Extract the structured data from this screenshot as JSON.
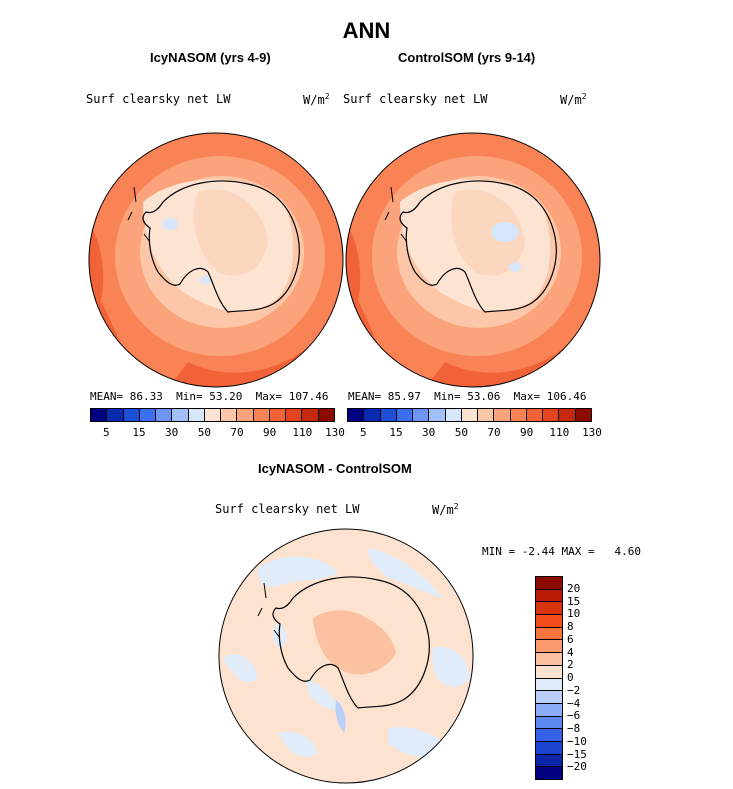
{
  "title": "ANN",
  "panels": [
    {
      "heading": "IcyNASOM (yrs 4-9)",
      "variable": "Surf clearsky net LW",
      "units": "W/m",
      "units_exp": "2",
      "stats": {
        "mean_label": "MEAN=",
        "mean": "86.33",
        "min_label": "Min=",
        "min": "53.20",
        "max_label": "Max=",
        "max": "107.46"
      }
    },
    {
      "heading": "ControlSOM (yrs 9-14)",
      "variable": "Surf clearsky net LW",
      "units": "W/m",
      "units_exp": "2",
      "stats": {
        "mean_label": "MEAN=",
        "mean": "85.97",
        "min_label": "Min=",
        "min": "53.06",
        "max_label": "Max=",
        "max": "106.46"
      }
    }
  ],
  "top_colorbar": {
    "colors": [
      "#000080",
      "#0a2ab0",
      "#1d4fd6",
      "#3a6ff0",
      "#6d95f5",
      "#a3bff8",
      "#d7e6fb",
      "#fde3d1",
      "#fcc7a8",
      "#fba47c",
      "#f98354",
      "#f26238",
      "#e4441f",
      "#c52a0e",
      "#8c0b00"
    ],
    "tick_labels": [
      "5",
      "15",
      "30",
      "50",
      "70",
      "90",
      "110",
      "130"
    ]
  },
  "diff_panel": {
    "heading": "IcyNASOM - ControlSOM",
    "variable": "Surf clearsky net LW",
    "units": "W/m",
    "units_exp": "2",
    "min_label": "MIN =",
    "min": "-2.44",
    "max_label": "MAX =",
    "max": "4.60"
  },
  "diff_colorbar": {
    "colors_top_to_bottom": [
      "#8c0b00",
      "#b81c04",
      "#d8350f",
      "#f24d1b",
      "#f8743f",
      "#fb9a6c",
      "#fcc1a0",
      "#fde3cf",
      "#e1ecfb",
      "#b9cffa",
      "#8aaef6",
      "#5c86f0",
      "#3461e6",
      "#1a43cf",
      "#0a25a8",
      "#000080"
    ],
    "tick_labels_top_to_bottom": [
      "20",
      "15",
      "10",
      "8",
      "6",
      "4",
      "2",
      "0",
      "−2",
      "−4",
      "−6",
      "−8",
      "−10",
      "−15",
      "−20"
    ]
  }
}
